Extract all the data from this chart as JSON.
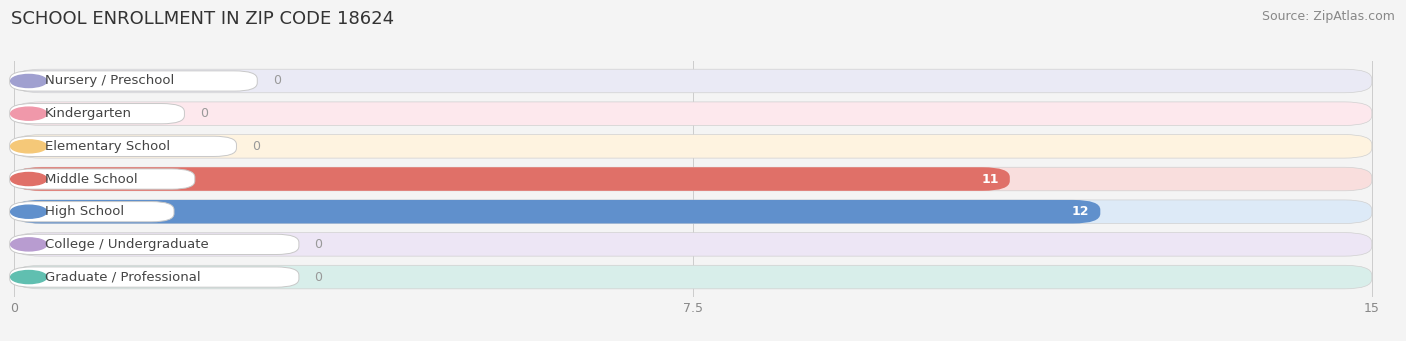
{
  "title": "SCHOOL ENROLLMENT IN ZIP CODE 18624",
  "source": "Source: ZipAtlas.com",
  "categories": [
    "Nursery / Preschool",
    "Kindergarten",
    "Elementary School",
    "Middle School",
    "High School",
    "College / Undergraduate",
    "Graduate / Professional"
  ],
  "values": [
    0,
    0,
    0,
    11,
    12,
    0,
    0
  ],
  "bar_colors": [
    "#a0a0d0",
    "#f098aa",
    "#f5c878",
    "#e07068",
    "#6090cc",
    "#b89cd0",
    "#60bfb0"
  ],
  "bar_bg_colors": [
    "#eaeaf5",
    "#fde8ed",
    "#fef3e0",
    "#f9dedd",
    "#ddeaf7",
    "#ede6f5",
    "#d8eeea"
  ],
  "label_bg": "#ffffff",
  "xlim": [
    0,
    15
  ],
  "xticks": [
    0,
    7.5,
    15
  ],
  "title_fontsize": 13,
  "source_fontsize": 9,
  "label_fontsize": 9.5,
  "value_fontsize": 9,
  "background_color": "#f4f4f4"
}
